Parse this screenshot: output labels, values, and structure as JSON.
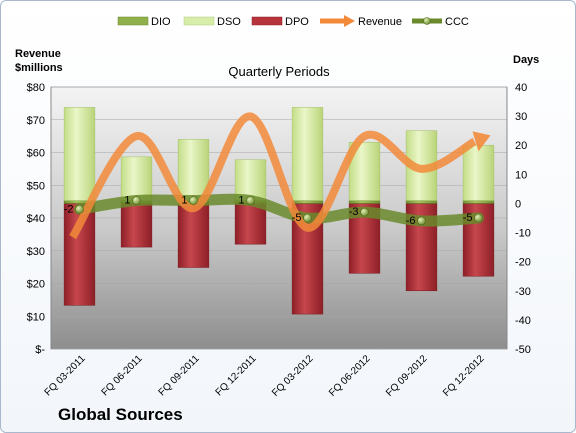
{
  "chart_data": {
    "type": "bar",
    "title": "Global Sources",
    "subtitle": "Quarterly Periods",
    "left_axis_label": [
      "Revenue",
      "$millions"
    ],
    "right_axis_label": "Days",
    "categories": [
      "FQ 03-2011",
      "FQ 06-2011",
      "FQ 09-2011",
      "FQ 12-2011",
      "FQ 03-2012",
      "FQ 06-2012",
      "FQ 09-2012",
      "FQ 12-2012"
    ],
    "left_axis": {
      "min": 0,
      "max": 80,
      "step": 10,
      "tick_labels": [
        "$-",
        "$10",
        "$20",
        "$30",
        "$40",
        "$50",
        "$60",
        "$70",
        "$80"
      ]
    },
    "right_axis": {
      "min": -50,
      "max": 40,
      "step": 10,
      "tick_labels": [
        "-50",
        "-40",
        "-30",
        "-20",
        "-10",
        "0",
        "10",
        "20",
        "30",
        "40"
      ]
    },
    "series": [
      {
        "name": "DIO",
        "kind": "bar-stacked",
        "axis": "right",
        "color": "#8fb04a",
        "values": [
          1,
          1,
          1,
          1,
          1,
          1,
          1,
          1
        ]
      },
      {
        "name": "DSO",
        "kind": "bar-stacked",
        "axis": "right",
        "color": "#d9edaa",
        "values": [
          32,
          15,
          21,
          14,
          32,
          20,
          24,
          19
        ]
      },
      {
        "name": "DPO",
        "kind": "bar-negative",
        "axis": "right",
        "color": "#b7333b",
        "values": [
          -35,
          -15,
          -22,
          -14,
          -38,
          -24,
          -30,
          -25
        ]
      },
      {
        "name": "Revenue",
        "kind": "line",
        "axis": "left",
        "color": "#f28a3a",
        "values": [
          36,
          65,
          43,
          71,
          37,
          65,
          55,
          64
        ]
      },
      {
        "name": "CCC",
        "kind": "line-markers",
        "axis": "right",
        "color": "#6a8a2c",
        "values": [
          -2,
          1,
          1,
          1,
          -5,
          -3,
          -6,
          -5
        ]
      }
    ],
    "legend_position": "top",
    "grid": true
  }
}
